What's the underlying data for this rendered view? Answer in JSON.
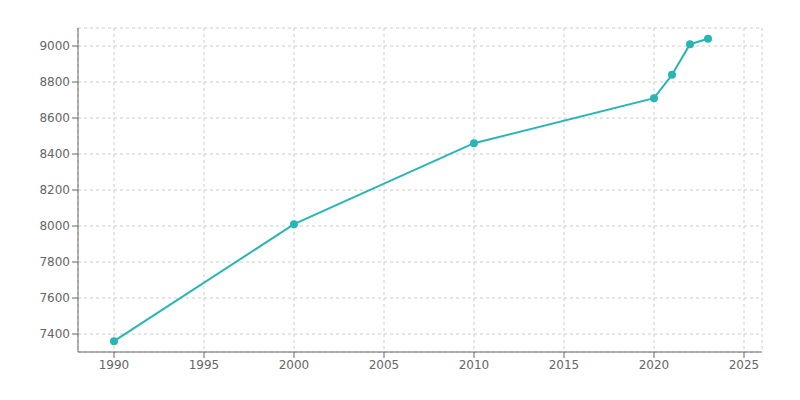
{
  "chart_data": {
    "type": "line",
    "x": [
      1990,
      2000,
      2010,
      2020,
      2021,
      2022,
      2023
    ],
    "values": [
      7360,
      8010,
      8460,
      8710,
      8840,
      9010,
      9040
    ],
    "color": "#2ab5b5",
    "marker": "circle",
    "xlim": [
      1988,
      2026
    ],
    "ylim": [
      7300,
      9100
    ],
    "xticks": [
      1990,
      1995,
      2000,
      2005,
      2010,
      2015,
      2020,
      2025
    ],
    "yticks": [
      7400,
      7600,
      7800,
      8000,
      8200,
      8400,
      8600,
      8800,
      9000
    ],
    "grid": true
  }
}
